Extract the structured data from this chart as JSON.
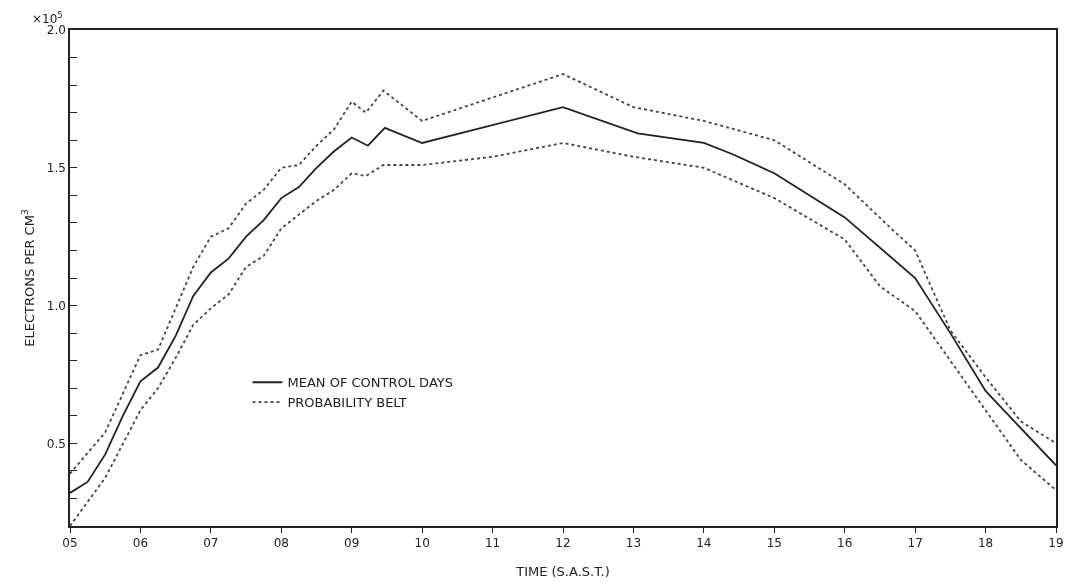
{
  "chart_data": {
    "type": "line",
    "xlabel": "TIME (S.A.S.T.)",
    "ylabel": "ELECTRONS PER CM$^{3}$",
    "annotations": [
      "×10$^{5}$"
    ],
    "xlim": [
      5,
      19
    ],
    "ylim": [
      0.2,
      2.0
    ],
    "xticks": [
      {
        "value": 5,
        "label": "05"
      },
      {
        "value": 6,
        "label": "06"
      },
      {
        "value": 7,
        "label": "07"
      },
      {
        "value": 8,
        "label": "08"
      },
      {
        "value": 9,
        "label": "09"
      },
      10,
      11,
      12,
      13,
      14,
      15,
      16,
      17,
      18,
      19
    ],
    "yticks": [
      {
        "value": 0.3,
        "label": null
      },
      {
        "value": 0.4,
        "label": null
      },
      {
        "value": 0.5,
        "label": "0.5"
      },
      {
        "value": 0.6,
        "label": null
      },
      {
        "value": 0.7,
        "label": null
      },
      {
        "value": 0.8,
        "label": null
      },
      {
        "value": 0.9,
        "label": null
      },
      {
        "value": 1.0,
        "label": "1.0"
      },
      {
        "value": 1.1,
        "label": null
      },
      {
        "value": 1.2,
        "label": null
      },
      {
        "value": 1.3,
        "label": null
      },
      {
        "value": 1.4,
        "label": null
      },
      {
        "value": 1.5,
        "label": "1.5"
      },
      {
        "value": 1.6,
        "label": null
      },
      {
        "value": 1.7,
        "label": null
      },
      {
        "value": 1.8,
        "label": null
      },
      {
        "value": 1.9,
        "label": null
      },
      {
        "value": 2.0,
        "label": "2.0"
      }
    ],
    "grid": false,
    "legend": "bottom left",
    "marker": "none",
    "series": [
      {
        "name": "MEAN OF CONTROL DAYS",
        "color": "#222222",
        "line_style": "solid",
        "x": [
          5,
          5.25,
          5.5,
          5.75,
          6,
          6.25,
          6.5,
          6.75,
          7,
          7.25,
          7.5,
          7.75,
          8,
          8.25,
          8.5,
          8.75,
          9,
          9.23,
          9.47,
          10,
          12,
          13.06,
          14,
          14.4,
          15,
          16,
          17,
          17.5,
          18,
          19
        ],
        "values": [
          0.32,
          0.36,
          0.46,
          0.6,
          0.725,
          0.775,
          0.89,
          1.035,
          1.12,
          1.17,
          1.25,
          1.31,
          1.39,
          1.43,
          1.5,
          1.56,
          1.61,
          1.58,
          1.645,
          1.59,
          1.72,
          1.625,
          1.59,
          1.55,
          1.48,
          1.32,
          1.1,
          0.9,
          0.69,
          0.42
        ]
      },
      {
        "name": "PROBABILITY BELT",
        "color": "#444444",
        "line_style": "dotted",
        "x": [
          5,
          5.5,
          6,
          6.25,
          6.5,
          6.75,
          7,
          7.25,
          7.5,
          7.75,
          8,
          8.25,
          8.5,
          8.75,
          9,
          9.2,
          9.45,
          10,
          12,
          13,
          14,
          15,
          16,
          16.7,
          17,
          17.5,
          18,
          18.5,
          19
        ],
        "values": [
          0.39,
          0.54,
          0.82,
          0.84,
          0.99,
          1.14,
          1.25,
          1.28,
          1.37,
          1.42,
          1.5,
          1.51,
          1.58,
          1.64,
          1.74,
          1.7,
          1.78,
          1.67,
          1.84,
          1.72,
          1.67,
          1.6,
          1.44,
          1.27,
          1.2,
          0.91,
          0.74,
          0.58,
          0.5
        ]
      },
      {
        "color": "#444444",
        "line_style": "dotted",
        "x": [
          5,
          5.5,
          6,
          6.25,
          6.5,
          6.75,
          7,
          7.25,
          7.5,
          7.75,
          8,
          8.25,
          8.5,
          8.75,
          9,
          9.2,
          9.45,
          10,
          11,
          12,
          13,
          14,
          15,
          16,
          16.5,
          17,
          18.5,
          19
        ],
        "values": [
          0.2,
          0.375,
          0.62,
          0.7,
          0.81,
          0.93,
          0.99,
          1.04,
          1.14,
          1.18,
          1.28,
          1.33,
          1.38,
          1.42,
          1.48,
          1.47,
          1.51,
          1.51,
          1.54,
          1.59,
          1.54,
          1.5,
          1.39,
          1.24,
          1.07,
          0.98,
          0.44,
          0.33
        ]
      }
    ]
  }
}
